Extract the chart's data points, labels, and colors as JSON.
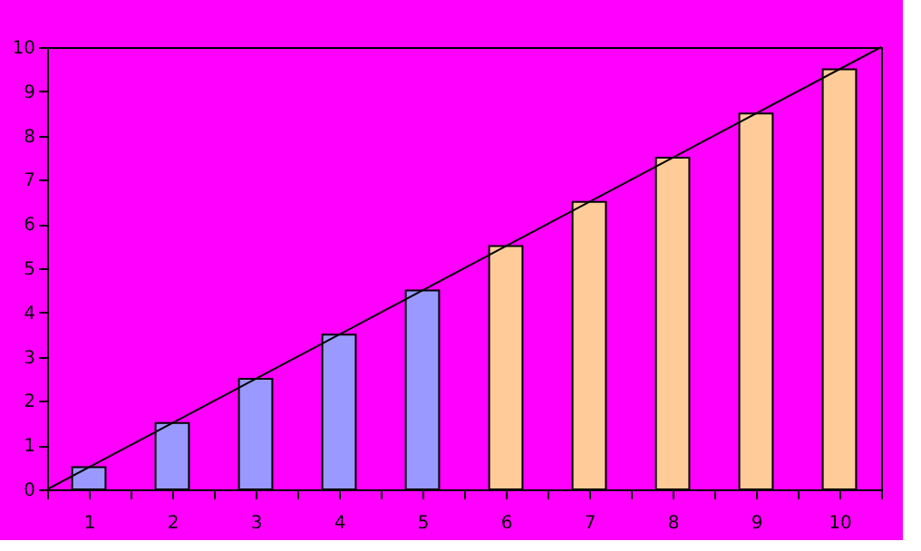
{
  "chart_data": {
    "type": "bar",
    "x": [
      0.5,
      1.5,
      2.5,
      3.5,
      4.5,
      5.5,
      6.5,
      7.5,
      8.5,
      9.5
    ],
    "series": [
      {
        "values": [
          0.5,
          1.5,
          2.5,
          3.5,
          4.5,
          5.5,
          6.5,
          7.5,
          8.5,
          9.5
        ],
        "colors": [
          "#9999ff",
          "#9999ff",
          "#9999ff",
          "#9999ff",
          "#9999ff",
          "#ffcc99",
          "#ffcc99",
          "#ffcc99",
          "#ffcc99",
          "#ffcc99"
        ]
      },
      {
        "type": "line",
        "x": [
          0,
          10
        ],
        "values": [
          0,
          10
        ],
        "color": "#000000"
      }
    ],
    "xlim": [
      0,
      10
    ],
    "xticks": [
      {
        "value": 0,
        "label": null
      },
      {
        "value": 0.5,
        "label": "1"
      },
      {
        "value": 1,
        "label": null
      },
      {
        "value": 1.5,
        "label": "2"
      },
      {
        "value": 2,
        "label": null
      },
      {
        "value": 2.5,
        "label": "3"
      },
      {
        "value": 3,
        "label": null
      },
      {
        "value": 3.5,
        "label": "4"
      },
      {
        "value": 4,
        "label": null
      },
      {
        "value": 4.5,
        "label": "5"
      },
      {
        "value": 5,
        "label": null
      },
      {
        "value": 5.5,
        "label": "6"
      },
      {
        "value": 6,
        "label": null
      },
      {
        "value": 6.5,
        "label": "7"
      },
      {
        "value": 7,
        "label": null
      },
      {
        "value": 7.5,
        "label": "8"
      },
      {
        "value": 8,
        "label": null
      },
      {
        "value": 8.5,
        "label": "9"
      },
      {
        "value": 9,
        "label": null
      },
      {
        "value": 9.5,
        "label": "10"
      },
      {
        "value": 10,
        "label": null
      }
    ],
    "ylim": [
      0,
      10
    ],
    "yticks": [
      0,
      1,
      2,
      3,
      4,
      5,
      6,
      7,
      8,
      9,
      10
    ],
    "grid": false,
    "legend": false
  }
}
